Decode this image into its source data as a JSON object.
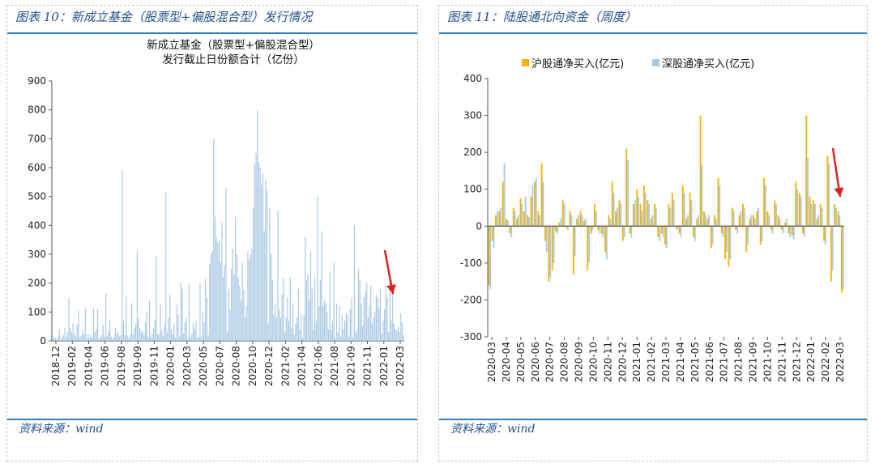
{
  "left_panel": {
    "title": "图表 10：新成立基金（股票型+偏股混合型）发行情况",
    "source": "资料来源：wind"
  },
  "right_panel": {
    "title": "图表 11：陆股通北向资金（周度）",
    "source": "资料来源：wind"
  },
  "colors": {
    "bar_blue": "#a9c8e6",
    "bar_gold": "#f2b400",
    "accent_line": "#2e7cc0",
    "arrow_red": "#e02020"
  },
  "chart_data": [
    {
      "type": "bar",
      "title": "新成立基金（股票型+偏股混合型）",
      "subtitle": "发行截止日份额合计（亿份）",
      "xlabel": "",
      "ylabel": "",
      "ylim": [
        0,
        900
      ],
      "yticks": [
        0,
        100,
        200,
        300,
        400,
        500,
        600,
        700,
        800,
        900
      ],
      "grid": false,
      "xtick_labels": [
        "2018-12",
        "2019-02",
        "2019-04",
        "2019-06",
        "2019-08",
        "2019-09",
        "2019-11",
        "2020-01",
        "2020-03",
        "2020-05",
        "2020-07",
        "2020-08",
        "2020-10",
        "2020-12",
        "2021-02",
        "2021-04",
        "2021-06",
        "2021-08",
        "2021-09",
        "2021-11",
        "2022-01",
        "2022-03"
      ],
      "series": [
        {
          "color": "#a9c8e6",
          "values": [
            18,
            8,
            12,
            5,
            15,
            40,
            5,
            9,
            20,
            45,
            12,
            30,
            150,
            45,
            30,
            60,
            25,
            15,
            55,
            105,
            10,
            18,
            35,
            22,
            112,
            10,
            25,
            10,
            20,
            12,
            115,
            30,
            40,
            110,
            8,
            12,
            20,
            55,
            15,
            165,
            18,
            35,
            70,
            15,
            8,
            12,
            45,
            22,
            30,
            15,
            20,
            590,
            70,
            20,
            155,
            18,
            8,
            25,
            130,
            22,
            45,
            60,
            310,
            80,
            45,
            30,
            35,
            20,
            65,
            100,
            15,
            140,
            12,
            25,
            45,
            75,
            295,
            25,
            20,
            125,
            35,
            18,
            55,
            515,
            30,
            80,
            160,
            40,
            22,
            60,
            12,
            125,
            90,
            15,
            205,
            180,
            25,
            65,
            80,
            8,
            195,
            15,
            25,
            60,
            40,
            70,
            12,
            15,
            200,
            12,
            100,
            65,
            215,
            150,
            20,
            265,
            300,
            310,
            700,
            430,
            360,
            340,
            350,
            270,
            410,
            220,
            260,
            530,
            30,
            180,
            110,
            250,
            320,
            230,
            430,
            300,
            220,
            190,
            140,
            270,
            180,
            80,
            120,
            310,
            280,
            300,
            320,
            460,
            610,
            650,
            800,
            620,
            600,
            540,
            580,
            380,
            560,
            520,
            60,
            460,
            300,
            210,
            90,
            130,
            80,
            450,
            110,
            80,
            160,
            220,
            30,
            80,
            150,
            70,
            220,
            45,
            130,
            20,
            60,
            80,
            180,
            40,
            90,
            12,
            90,
            360,
            210,
            230,
            140,
            310,
            180,
            40,
            220,
            70,
            500,
            120,
            210,
            380,
            120,
            140,
            130,
            100,
            40,
            240,
            40,
            70,
            270,
            10,
            130,
            30,
            120,
            15,
            90,
            40,
            70,
            95,
            90,
            15,
            110,
            150,
            12,
            400,
            30,
            40,
            250,
            210,
            130,
            50,
            150,
            170,
            200,
            80,
            120,
            190,
            60,
            80,
            100,
            160,
            150,
            115,
            180,
            25,
            70,
            110,
            190,
            150,
            30,
            220,
            70,
            180,
            60,
            40,
            35,
            50,
            30,
            95,
            65,
            20
          ]
        }
      ],
      "annotation": "red downward arrow near latest bars"
    },
    {
      "type": "bar",
      "title": "",
      "xlabel": "",
      "ylabel": "",
      "ylim": [
        -300,
        400
      ],
      "yticks": [
        -300,
        -200,
        -100,
        0,
        100,
        200,
        300,
        400
      ],
      "grid": false,
      "legend_position": "top",
      "xtick_labels": [
        "2020-03",
        "2020-04",
        "2020-05",
        "2020-06",
        "2020-07",
        "2020-08",
        "2020-09",
        "2020-10",
        "2020-11",
        "2020-12",
        "2021-01",
        "2021-02",
        "2021-03",
        "2021-04",
        "2021-05",
        "2021-06",
        "2021-07",
        "2021-08",
        "2021-09",
        "2021-10",
        "2021-11",
        "2021-12",
        "2022-01",
        "2022-02",
        "2022-03"
      ],
      "series": [
        {
          "name": "沪股通净买入(亿元)",
          "color": "#f2b400",
          "values": [
            -160,
            -40,
            30,
            40,
            120,
            20,
            -20,
            50,
            20,
            75,
            40,
            30,
            80,
            120,
            40,
            170,
            -40,
            -150,
            -120,
            -15,
            10,
            70,
            -5,
            40,
            -130,
            20,
            40,
            15,
            -120,
            -20,
            60,
            -10,
            -20,
            -70,
            30,
            120,
            40,
            70,
            -40,
            210,
            -20,
            60,
            100,
            60,
            110,
            70,
            20,
            60,
            -30,
            -20,
            -50,
            60,
            90,
            -5,
            -20,
            110,
            20,
            90,
            -30,
            20,
            300,
            40,
            20,
            -60,
            30,
            130,
            -20,
            -90,
            -110,
            50,
            -10,
            30,
            60,
            -70,
            20,
            30,
            40,
            -50,
            130,
            40,
            -10,
            70,
            30,
            -10,
            10,
            -20,
            -25,
            120,
            90,
            -20,
            300,
            80,
            70,
            20,
            60,
            -40,
            190,
            -150,
            60,
            40,
            -180
          ]
        },
        {
          "name": "深股通净买入(亿元)",
          "color": "#a9c8e6",
          "values": [
            -170,
            -60,
            40,
            50,
            170,
            15,
            -30,
            40,
            30,
            60,
            80,
            25,
            110,
            130,
            30,
            120,
            -70,
            -140,
            -100,
            -20,
            20,
            60,
            -10,
            30,
            -80,
            30,
            30,
            20,
            -100,
            -10,
            40,
            -20,
            -30,
            -90,
            20,
            90,
            50,
            60,
            -30,
            180,
            -30,
            70,
            80,
            40,
            90,
            60,
            30,
            50,
            -40,
            -30,
            -60,
            50,
            70,
            -10,
            -30,
            90,
            30,
            70,
            -40,
            30,
            165,
            30,
            30,
            -50,
            20,
            110,
            -30,
            -70,
            -90,
            40,
            -20,
            40,
            50,
            -50,
            30,
            20,
            50,
            -40,
            110,
            30,
            -20,
            60,
            20,
            -20,
            20,
            -30,
            -35,
            100,
            80,
            -30,
            185,
            60,
            60,
            30,
            50,
            -50,
            170,
            -120,
            50,
            30,
            -170
          ]
        }
      ],
      "annotation": "red downward arrow near latest bars"
    }
  ]
}
